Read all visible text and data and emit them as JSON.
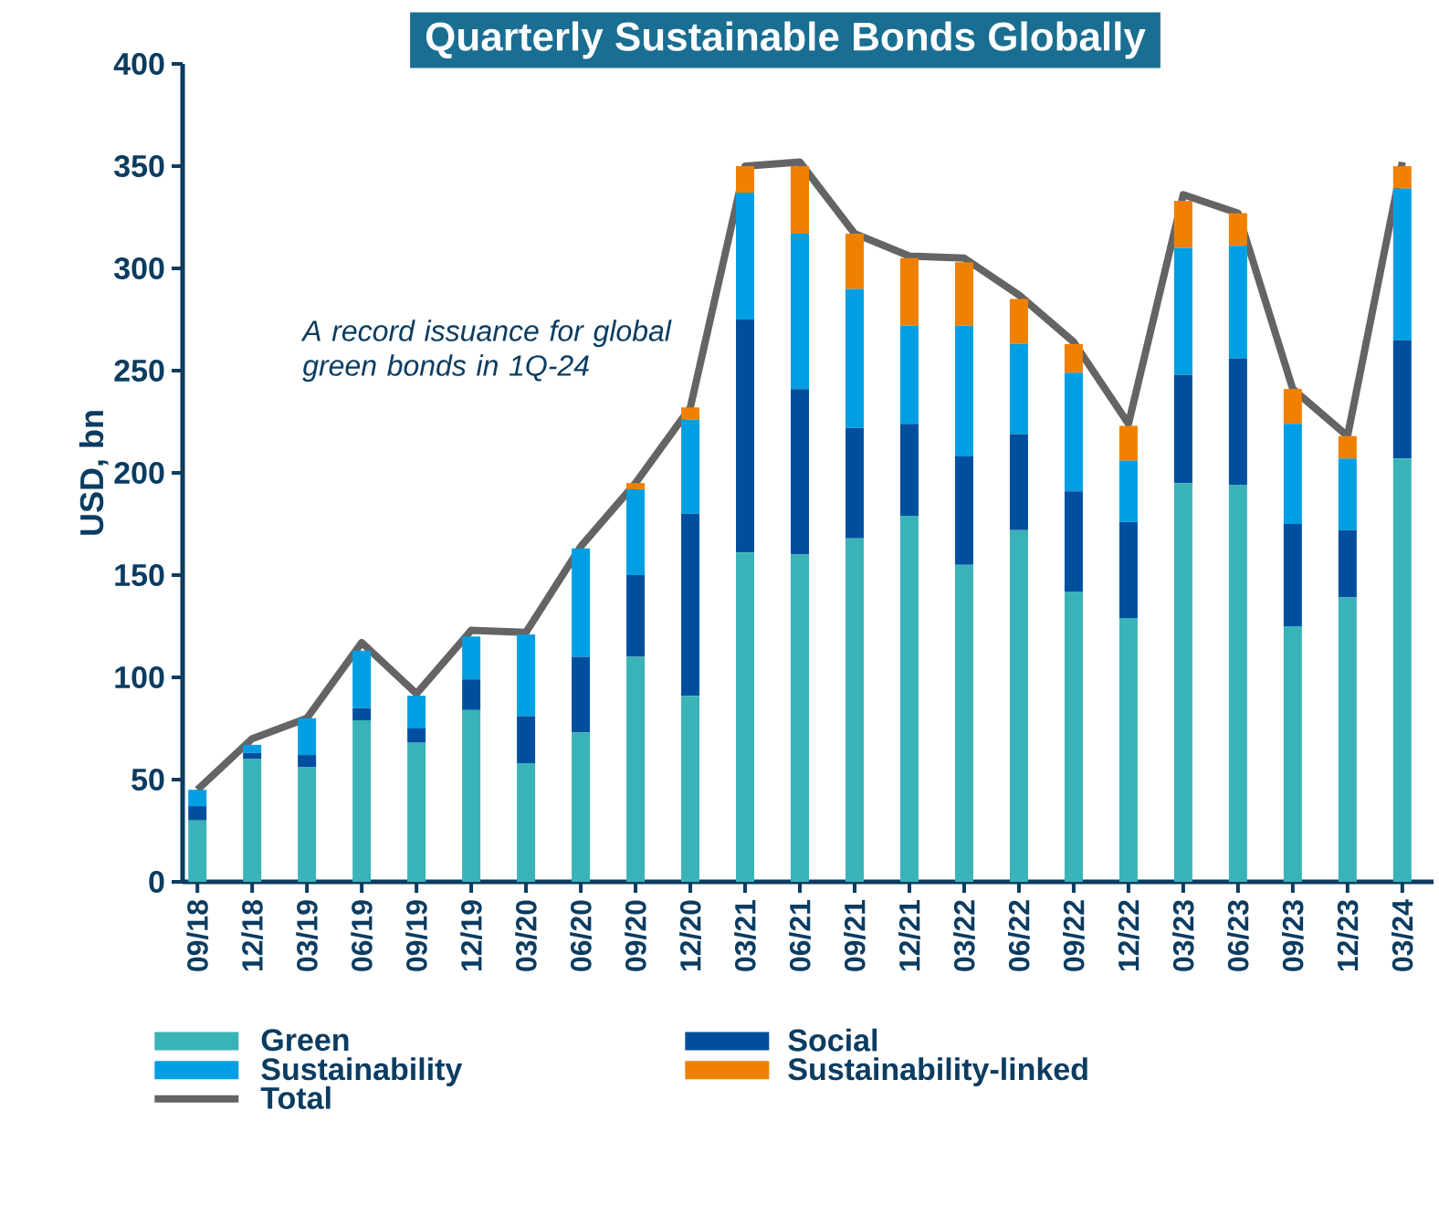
{
  "chart_data": {
    "type": "bar",
    "stacked": true,
    "title": "Quarterly Sustainable Bonds Globally",
    "ylabel": "USD, bn",
    "categories": [
      "09/18",
      "12/18",
      "03/19",
      "06/19",
      "09/19",
      "12/19",
      "03/20",
      "06/20",
      "09/20",
      "12/20",
      "03/21",
      "06/21",
      "09/21",
      "12/21",
      "03/22",
      "06/22",
      "09/22",
      "12/22",
      "03/23",
      "06/23",
      "09/23",
      "12/23",
      "03/24"
    ],
    "series": [
      {
        "name": "Green",
        "color": "#3ab3b8",
        "values": [
          30,
          60,
          56,
          79,
          68,
          84,
          58,
          73,
          110,
          91,
          161,
          160,
          168,
          179,
          155,
          172,
          142,
          129,
          195,
          194,
          125,
          139,
          207
        ]
      },
      {
        "name": "Social",
        "color": "#004f9f",
        "values": [
          7,
          3,
          6,
          6,
          7,
          15,
          23,
          37,
          40,
          89,
          114,
          81,
          54,
          45,
          53,
          47,
          49,
          47,
          53,
          62,
          50,
          33,
          58
        ]
      },
      {
        "name": "Sustainability",
        "color": "#009fe3",
        "values": [
          8,
          4,
          18,
          28,
          16,
          21,
          40,
          53,
          42,
          46,
          62,
          76,
          68,
          48,
          64,
          44,
          58,
          30,
          62,
          55,
          49,
          35,
          74
        ]
      },
      {
        "name": "Sustainability-linked",
        "color": "#f08000",
        "values": [
          0,
          0,
          0,
          0,
          0,
          0,
          0,
          0,
          3,
          6,
          13,
          33,
          27,
          33,
          31,
          22,
          14,
          17,
          23,
          16,
          17,
          11,
          11
        ]
      },
      {
        "name": "Total",
        "type": "line",
        "color": "#646464",
        "values": [
          45,
          70,
          80,
          117,
          92,
          123,
          122,
          164,
          195,
          232,
          350,
          352,
          317,
          306,
          305,
          287,
          264,
          224,
          336,
          327,
          241,
          218,
          352
        ]
      }
    ],
    "ylim": [
      0,
      400
    ],
    "yticks": [
      0,
      50,
      100,
      150,
      200,
      250,
      300,
      350,
      400
    ],
    "grid": false,
    "legend": "bottom",
    "marker": "none",
    "annotations": [
      "A record issuance for global green bonds in 1Q-24"
    ]
  }
}
